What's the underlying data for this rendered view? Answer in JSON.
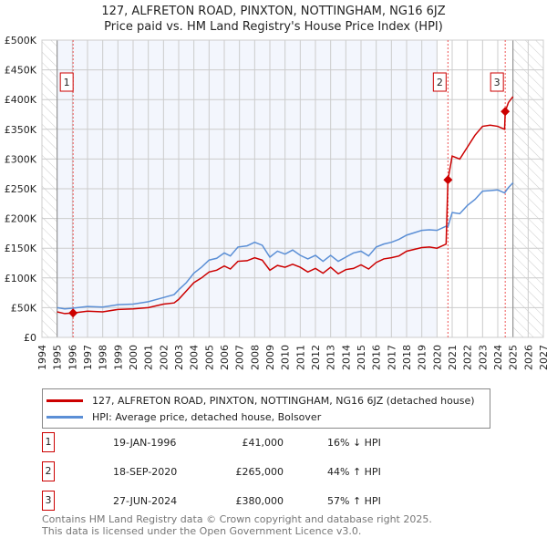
{
  "chart_data": {
    "type": "line",
    "title": "127, ALFRETON ROAD, PINXTON, NOTTINGHAM, NG16 6JZ",
    "subtitle": "Price paid vs. HM Land Registry's House Price Index (HPI)",
    "xlim": [
      1994,
      2027
    ],
    "ylim": [
      0,
      500000
    ],
    "x_ticks": [
      "1994",
      "1995",
      "1996",
      "1997",
      "1998",
      "1999",
      "2000",
      "2001",
      "2002",
      "2003",
      "2004",
      "2005",
      "2006",
      "2007",
      "2008",
      "2009",
      "2010",
      "2011",
      "2012",
      "2013",
      "2014",
      "2015",
      "2016",
      "2017",
      "2018",
      "2019",
      "2020",
      "2021",
      "2022",
      "2023",
      "2024",
      "2025",
      "2026",
      "2027"
    ],
    "y_ticks": [
      {
        "v": 0,
        "label": "£0"
      },
      {
        "v": 50000,
        "label": "£50K"
      },
      {
        "v": 100000,
        "label": "£100K"
      },
      {
        "v": 150000,
        "label": "£150K"
      },
      {
        "v": 200000,
        "label": "£200K"
      },
      {
        "v": 250000,
        "label": "£250K"
      },
      {
        "v": 300000,
        "label": "£300K"
      },
      {
        "v": 350000,
        "label": "£350K"
      },
      {
        "v": 400000,
        "label": "£400K"
      },
      {
        "v": 450000,
        "label": "£450K"
      },
      {
        "v": 500000,
        "label": "£500K"
      }
    ],
    "series": [
      {
        "name": "127, ALFRETON ROAD, PINXTON, NOTTINGHAM, NG16 6JZ (detached house)",
        "color": "#cc0000",
        "x": [
          1995,
          1995.5,
          1996.05,
          1997,
          1998,
          1999,
          2000,
          2001,
          2002,
          2002.7,
          2003,
          2003.5,
          2004,
          2004.5,
          2005,
          2005.5,
          2006,
          2006.4,
          2006.9,
          2007.5,
          2008,
          2008.5,
          2009,
          2009.5,
          2010,
          2010.5,
          2011,
          2011.5,
          2012,
          2012.5,
          2013,
          2013.5,
          2014,
          2014.5,
          2015,
          2015.5,
          2016,
          2016.5,
          2017,
          2017.5,
          2018,
          2018.5,
          2019,
          2019.5,
          2020,
          2020.6,
          2020.72,
          2021,
          2021.5,
          2022,
          2022.5,
          2023,
          2023.5,
          2024,
          2024.45,
          2024.49,
          2024.7,
          2025
        ],
        "y": [
          43000,
          40000,
          41000,
          44000,
          43000,
          47000,
          48000,
          50000,
          56000,
          58000,
          64000,
          78000,
          92000,
          100000,
          110000,
          113000,
          120000,
          115000,
          128000,
          129000,
          134000,
          130000,
          113000,
          121000,
          118000,
          123000,
          118000,
          110000,
          116000,
          108000,
          118000,
          107000,
          114000,
          116000,
          122000,
          115000,
          126000,
          132000,
          134000,
          137000,
          145000,
          148000,
          151000,
          152000,
          150000,
          157000,
          265000,
          305000,
          300000,
          320000,
          340000,
          355000,
          357000,
          355000,
          350000,
          380000,
          395000,
          405000
        ]
      },
      {
        "name": "HPI: Average price, detached house, Bolsover",
        "color": "#5b8fd6",
        "x": [
          1995,
          1995.5,
          1996,
          1997,
          1998,
          1999,
          2000,
          2001,
          2002,
          2002.7,
          2003,
          2003.5,
          2004,
          2004.5,
          2005,
          2005.5,
          2006,
          2006.4,
          2006.9,
          2007.5,
          2008,
          2008.5,
          2009,
          2009.5,
          2010,
          2010.5,
          2011,
          2011.5,
          2012,
          2012.5,
          2013,
          2013.5,
          2014,
          2014.5,
          2015,
          2015.5,
          2016,
          2016.5,
          2017,
          2017.5,
          2018,
          2018.5,
          2019,
          2019.5,
          2020,
          2020.6,
          2020.72,
          2021,
          2021.5,
          2022,
          2022.5,
          2023,
          2023.5,
          2024,
          2024.45,
          2024.7,
          2025
        ],
        "y": [
          50000,
          48000,
          49000,
          52000,
          51000,
          55000,
          56000,
          60000,
          67000,
          72000,
          80000,
          92000,
          108000,
          118000,
          130000,
          133000,
          142000,
          137000,
          152000,
          154000,
          160000,
          155000,
          135000,
          145000,
          140000,
          147000,
          138000,
          132000,
          138000,
          128000,
          138000,
          128000,
          135000,
          142000,
          145000,
          137000,
          152000,
          157000,
          160000,
          165000,
          172000,
          176000,
          180000,
          181000,
          180000,
          187000,
          186000,
          210000,
          208000,
          222000,
          232000,
          246000,
          247000,
          248000,
          243000,
          252000,
          260000
        ]
      }
    ],
    "sales": [
      {
        "n": "1",
        "x": 1996.05,
        "y": 41000
      },
      {
        "n": "2",
        "x": 2020.72,
        "y": 265000
      },
      {
        "n": "3",
        "x": 2024.49,
        "y": 380000
      }
    ]
  },
  "title": "127, ALFRETON ROAD, PINXTON, NOTTINGHAM, NG16 6JZ",
  "subtitle": "Price paid vs. HM Land Registry's House Price Index (HPI)",
  "legend": [
    "127, ALFRETON ROAD, PINXTON, NOTTINGHAM, NG16 6JZ (detached house)",
    "HPI: Average price, detached house, Bolsover"
  ],
  "table": [
    {
      "n": "1",
      "date": "19-JAN-1996",
      "price": "£41,000",
      "hpi": "16% ↓ HPI"
    },
    {
      "n": "2",
      "date": "18-SEP-2020",
      "price": "£265,000",
      "hpi": "44% ↑ HPI"
    },
    {
      "n": "3",
      "date": "27-JUN-2024",
      "price": "£380,000",
      "hpi": "57% ↑ HPI"
    }
  ],
  "footer": [
    "Contains HM Land Registry data © Crown copyright and database right 2025.",
    "This data is licensed under the Open Government Licence v3.0."
  ]
}
